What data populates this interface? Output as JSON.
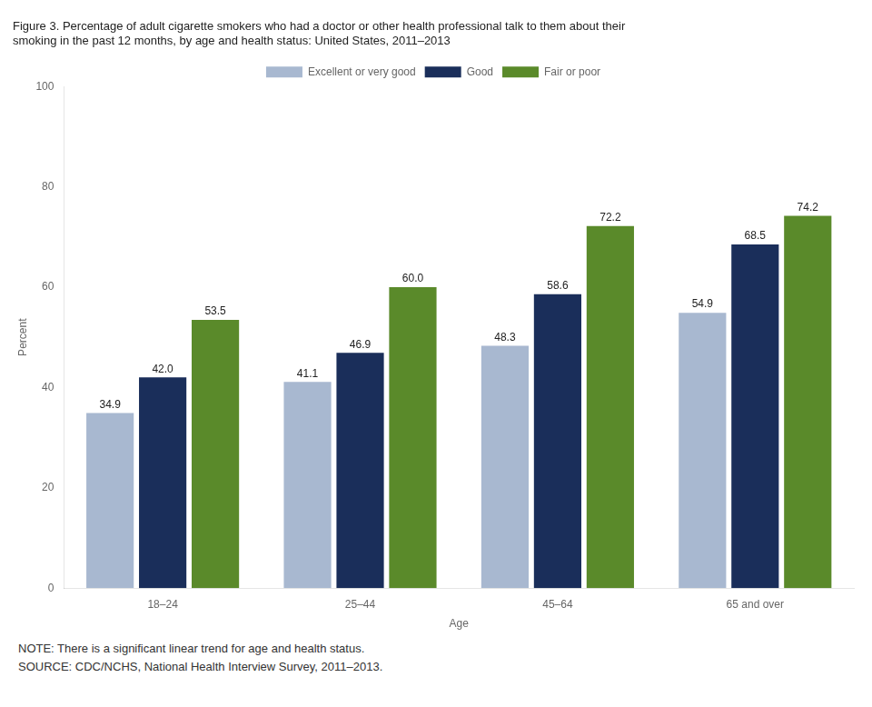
{
  "chart_data": {
    "type": "bar",
    "title": [
      "Figure 3. Percentage of adult cigarette smokers who had a doctor or other health professional talk to them about their",
      "smoking in the past 12 months, by age and health status: United States, 2011–2013"
    ],
    "categories": [
      "18–24",
      "25–44",
      "45–64",
      "65 and over"
    ],
    "series": [
      {
        "name": "Excellent or very good",
        "color": "#a8b8d0",
        "values": [
          34.9,
          41.1,
          48.3,
          54.9
        ],
        "value_labels": [
          "34.9",
          "41.1",
          "48.3",
          "54.9"
        ]
      },
      {
        "name": "Good",
        "color": "#1a2e5a",
        "values": [
          42.0,
          46.9,
          58.6,
          68.5
        ],
        "value_labels": [
          "42.0",
          "46.9",
          "58.6",
          "68.5"
        ]
      },
      {
        "name": "Fair or poor",
        "color": "#5a8a2a",
        "values": [
          53.5,
          60.0,
          72.2,
          74.2
        ],
        "value_labels": [
          "53.5",
          "60.0",
          "72.2",
          "74.2"
        ]
      }
    ],
    "xlabel": "Age",
    "ylabel": "Percent",
    "ylim": [
      0,
      100
    ],
    "yticks": [
      0,
      20,
      40,
      60,
      80,
      100
    ],
    "grid": false,
    "legend": "top",
    "data_labels": true,
    "annotations": [
      "NOTE: There is a significant linear trend for age and health status.",
      "SOURCE: CDC/NCHS, National Health Interview Survey, 2011–2013."
    ]
  }
}
